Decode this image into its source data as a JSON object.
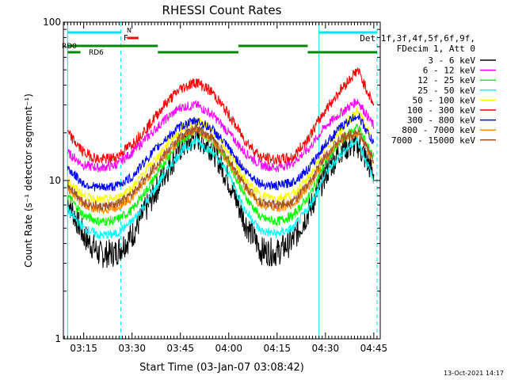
{
  "chart_data": {
    "type": "line",
    "title": "RHESSI Count Rates",
    "xlabel": "Start Time (03-Jan-07 03:08:42)",
    "ylabel": "Count Rate (s⁻¹ detector segment⁻¹)",
    "y_scale": "log",
    "ylim": [
      1,
      100
    ],
    "xlim": [
      "03:08:42",
      "04:47:00"
    ],
    "x_ticks": [
      "03:15",
      "03:30",
      "03:45",
      "04:00",
      "04:15",
      "04:30",
      "04:45"
    ],
    "y_ticks": [
      "1",
      "10",
      "100"
    ],
    "x_unit": "time",
    "legend_header": [
      "Det 1f,3f,4f,5f,6f,9f,",
      "FDecim 1, Att 0"
    ],
    "legend_placement": "right",
    "timestamp": "13-Oct-2021 14:17",
    "series": [
      {
        "name": "3 - 6 keV",
        "color": "#000000",
        "x": [
          "03:10",
          "03:15",
          "03:20",
          "03:25",
          "03:30",
          "03:35",
          "03:40",
          "03:45",
          "03:50",
          "03:55",
          "04:00",
          "04:05",
          "04:10",
          "04:15",
          "04:20",
          "04:25",
          "04:30",
          "04:35",
          "04:40",
          "04:45"
        ],
        "values": [
          7.5,
          4.5,
          3.4,
          3.5,
          4.5,
          7,
          11,
          16,
          19,
          16,
          10,
          5.5,
          3.6,
          3.5,
          4.2,
          6.5,
          11,
          16,
          17,
          11
        ]
      },
      {
        "name": "6 - 12 keV",
        "color": "#ff00ff",
        "x": [
          "03:10",
          "03:15",
          "03:20",
          "03:25",
          "03:30",
          "03:35",
          "03:40",
          "03:45",
          "03:50",
          "03:55",
          "04:00",
          "04:05",
          "04:10",
          "04:15",
          "04:20",
          "04:25",
          "04:30",
          "04:35",
          "04:40",
          "04:45"
        ],
        "values": [
          15,
          12.5,
          12,
          12.5,
          15,
          19,
          24,
          29,
          30,
          26,
          20,
          15,
          12.5,
          12,
          13,
          16,
          22,
          27,
          32,
          22
        ]
      },
      {
        "name": "12 - 25 keV",
        "color": "#00ff00",
        "x": [
          "03:10",
          "03:15",
          "03:20",
          "03:25",
          "03:30",
          "03:35",
          "03:40",
          "03:45",
          "03:50",
          "03:55",
          "04:00",
          "04:05",
          "04:10",
          "04:15",
          "04:20",
          "04:25",
          "04:30",
          "04:35",
          "04:40",
          "04:45"
        ],
        "values": [
          8,
          6,
          5.5,
          5.6,
          6.5,
          9,
          13,
          18,
          21,
          18,
          13,
          8,
          5.8,
          5.5,
          6,
          8,
          13,
          18,
          22,
          14
        ]
      },
      {
        "name": "25 - 50 keV",
        "color": "#00ffff",
        "x": [
          "03:10",
          "03:15",
          "03:20",
          "03:25",
          "03:30",
          "03:35",
          "03:40",
          "03:45",
          "03:50",
          "03:55",
          "04:00",
          "04:05",
          "04:10",
          "04:15",
          "04:20",
          "04:25",
          "04:30",
          "04:35",
          "04:40",
          "04:45"
        ],
        "values": [
          6.5,
          5,
          4.5,
          4.6,
          5.5,
          7.5,
          11,
          15,
          18,
          15,
          11,
          6.5,
          4.8,
          4.6,
          5,
          6.8,
          11,
          15,
          18,
          10
        ]
      },
      {
        "name": "50 - 100 keV",
        "color": "#ffff00",
        "x": [
          "03:10",
          "03:15",
          "03:20",
          "03:25",
          "03:30",
          "03:35",
          "03:40",
          "03:45",
          "03:50",
          "03:55",
          "04:00",
          "04:05",
          "04:10",
          "04:15",
          "04:20",
          "04:25",
          "04:30",
          "04:35",
          "04:40",
          "04:45"
        ],
        "values": [
          10,
          8,
          7.5,
          7.7,
          9,
          12,
          16,
          21,
          24,
          21,
          15,
          10,
          8,
          7.7,
          8.2,
          10.5,
          16,
          21,
          28,
          17
        ]
      },
      {
        "name": "100 - 300 keV",
        "color": "#ff0000",
        "x": [
          "03:10",
          "03:15",
          "03:20",
          "03:25",
          "03:30",
          "03:35",
          "03:40",
          "03:45",
          "03:50",
          "03:55",
          "04:00",
          "04:05",
          "04:10",
          "04:15",
          "04:20",
          "04:25",
          "04:30",
          "04:35",
          "04:40",
          "04:45"
        ],
        "values": [
          20,
          15,
          13.5,
          14,
          17,
          22,
          30,
          38,
          42,
          36,
          26,
          18,
          14,
          13.5,
          14,
          19,
          28,
          38,
          50,
          30
        ]
      },
      {
        "name": "300 - 800 keV",
        "color": "#0000ff",
        "x": [
          "03:10",
          "03:15",
          "03:20",
          "03:25",
          "03:30",
          "03:35",
          "03:40",
          "03:45",
          "03:50",
          "03:55",
          "04:00",
          "04:05",
          "04:10",
          "04:15",
          "04:20",
          "04:25",
          "04:30",
          "04:35",
          "04:40",
          "04:45"
        ],
        "values": [
          12,
          9.5,
          9,
          9.2,
          10.5,
          14,
          18,
          22,
          24,
          21,
          16,
          11.5,
          9.5,
          9.2,
          9.8,
          12,
          17,
          22,
          26,
          17
        ]
      },
      {
        "name": "800 - 7000 keV",
        "color": "#ff8c00",
        "x": [
          "03:10",
          "03:15",
          "03:20",
          "03:25",
          "03:30",
          "03:35",
          "03:40",
          "03:45",
          "03:50",
          "03:55",
          "04:00",
          "04:05",
          "04:10",
          "04:15",
          "04:20",
          "04:25",
          "04:30",
          "04:35",
          "04:40",
          "04:45"
        ],
        "values": [
          9,
          7,
          6.5,
          6.7,
          7.8,
          10.5,
          14,
          18.5,
          21,
          18,
          13,
          9,
          7,
          6.7,
          7.1,
          9.2,
          14,
          18,
          20,
          13
        ]
      },
      {
        "name": "7000 - 15000 keV",
        "color": "#a0522d",
        "x": [
          "03:10",
          "03:15",
          "03:20",
          "03:25",
          "03:30",
          "03:35",
          "03:40",
          "03:45",
          "03:50",
          "03:55",
          "04:00",
          "04:05",
          "04:10",
          "04:15",
          "04:20",
          "04:25",
          "04:30",
          "04:35",
          "04:40",
          "04:45"
        ],
        "values": [
          9.5,
          7.3,
          6.8,
          7,
          8.2,
          11,
          14.5,
          19,
          21.5,
          18.5,
          13.5,
          9.3,
          7.3,
          7,
          7.4,
          9.6,
          14.5,
          18.5,
          20.5,
          13.5
        ]
      }
    ],
    "annotations": {
      "top_bar_label": "N",
      "flare_label": "F",
      "rd0_label": "RD0",
      "rd6_label": "RD6"
    }
  }
}
